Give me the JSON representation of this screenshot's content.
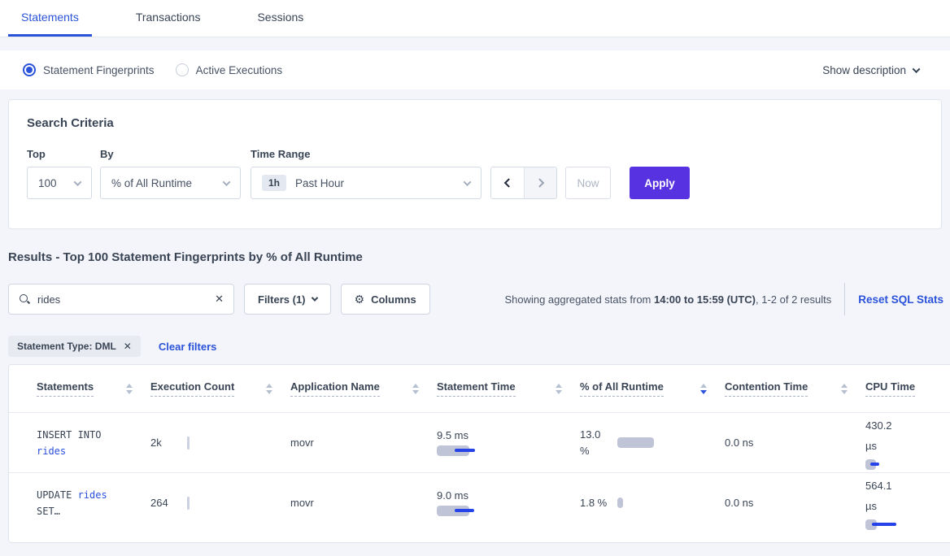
{
  "tabs": {
    "items": [
      {
        "label": "Statements",
        "active": true
      },
      {
        "label": "Transactions",
        "active": false
      },
      {
        "label": "Sessions",
        "active": false
      }
    ]
  },
  "view_bar": {
    "radio_selected": "Statement Fingerprints",
    "radio_unselected": "Active Executions",
    "show_description": "Show description"
  },
  "search_criteria": {
    "title": "Search Criteria",
    "top_label": "Top",
    "top_value": "100",
    "by_label": "By",
    "by_value": "% of All Runtime",
    "time_range_label": "Time Range",
    "time_range_badge": "1h",
    "time_range_value": "Past Hour",
    "now_label": "Now",
    "apply_label": "Apply"
  },
  "results": {
    "heading": "Results - Top 100 Statement Fingerprints by % of All Runtime",
    "search_value": "rides",
    "clear_search": "✕",
    "filters_label": "Filters (1)",
    "columns_label": "Columns",
    "gear_icon": "⚙",
    "showing_prefix": "Showing aggregated stats from ",
    "showing_range": "14:00 to 15:59 (UTC)",
    "showing_suffix": ", 1-2 of 2 results",
    "reset_label": "Reset SQL Stats",
    "filter_pill": "Statement Type: DML",
    "pill_close": "✕",
    "clear_filters": "Clear filters"
  },
  "table": {
    "headers": [
      {
        "label": "Statements",
        "sort": "none"
      },
      {
        "label": "Execution Count",
        "sort": "none"
      },
      {
        "label": "Application Name",
        "sort": "none"
      },
      {
        "label": "Statement Time",
        "sort": "none"
      },
      {
        "label": "% of All Runtime",
        "sort": "desc"
      },
      {
        "label": "Contention Time",
        "sort": "none"
      },
      {
        "label": "CPU Time",
        "sort": "none"
      }
    ],
    "rows": [
      {
        "sql_l1_pre": "INSERT INTO",
        "sql_l1_link": "",
        "sql_l2_pre": "",
        "sql_l2_link": "rides",
        "sql_l2_post": "",
        "execution_count": "2k",
        "application": "movr",
        "statement_time": "9.5 ms",
        "statement_time_bar": {
          "gray": 40,
          "line": [
            22,
            47
          ]
        },
        "runtime": "13.0 %",
        "runtime_bar": {
          "gray": 45
        },
        "contention": "0.0 ns",
        "cpu": "430.2 µs",
        "cpu_bar": {
          "gray": 13,
          "line": [
            6,
            17
          ]
        }
      },
      {
        "sql_l1_pre": "UPDATE ",
        "sql_l1_link": "rides",
        "sql_l2_pre": "SET…",
        "sql_l2_link": "",
        "sql_l2_post": "",
        "execution_count": "264",
        "application": "movr",
        "statement_time": "9.0 ms",
        "statement_time_bar": {
          "gray": 40,
          "line": [
            22,
            46
          ]
        },
        "runtime": "1.8 %",
        "runtime_bar": {
          "gray": 7
        },
        "contention": "0.0 ns",
        "cpu": "564.1 µs",
        "cpu_bar": {
          "gray": 14,
          "line": [
            8,
            38
          ]
        }
      }
    ]
  },
  "colors": {
    "accent_blue": "#2a53d9",
    "apply_purple": "#5732e0",
    "bar_gray": "#bfc5d7",
    "bar_blue": "#2543e8"
  }
}
